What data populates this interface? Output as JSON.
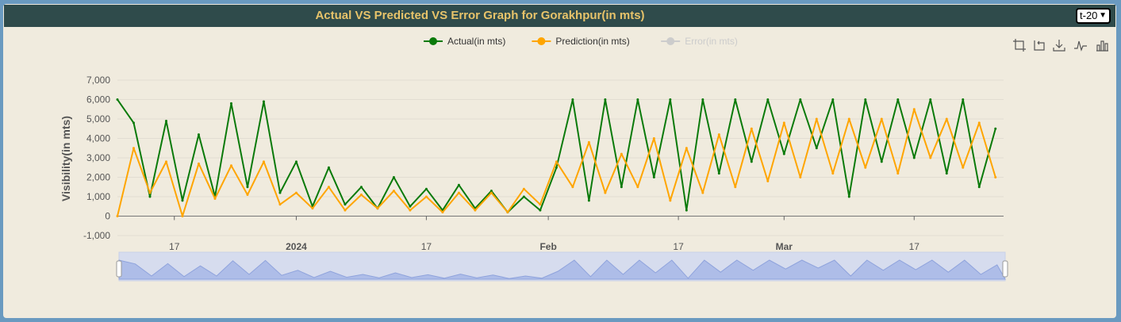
{
  "header": {
    "title": "Actual VS Predicted VS Error Graph for Gorakhpur(in mts)",
    "selected_option": "t-20"
  },
  "toolbox": {
    "icons": [
      "crop-zoom-icon",
      "undo-zoom-icon",
      "download-icon",
      "line-chart-icon",
      "bar-chart-icon"
    ]
  },
  "colors": {
    "actual": "#0a7a0a",
    "prediction": "#ffa500",
    "error": "#cccccc",
    "title": "#e7c36a",
    "titlebar": "#2f4b4b"
  },
  "chart_data": {
    "type": "line",
    "title": "Actual VS Predicted VS Error Graph for Gorakhpur(in mts)",
    "ylabel": "Visibility(in mts)",
    "xlabel": "",
    "ylim": [
      -1000,
      7000
    ],
    "yticks": [
      "7,000",
      "6,000",
      "5,000",
      "4,000",
      "3,000",
      "2,000",
      "1,000",
      "0",
      "-1,000"
    ],
    "xlim": [
      "2023-12-10",
      "2024-03-28"
    ],
    "xticks": [
      {
        "date": "2023-12-17",
        "label": "17",
        "bold": false
      },
      {
        "date": "2024-01-01",
        "label": "2024",
        "bold": true
      },
      {
        "date": "2024-01-17",
        "label": "17",
        "bold": false
      },
      {
        "date": "2024-02-01",
        "label": "Feb",
        "bold": true
      },
      {
        "date": "2024-02-17",
        "label": "17",
        "bold": false
      },
      {
        "date": "2024-03-01",
        "label": "Mar",
        "bold": true
      },
      {
        "date": "2024-03-17",
        "label": "17",
        "bold": false
      }
    ],
    "legend": {
      "position": "top-center",
      "items": [
        {
          "name": "Actual(in mts)",
          "color": "#0a7a0a",
          "active": true
        },
        {
          "name": "Prediction(in mts)",
          "color": "#ffa500",
          "active": true
        },
        {
          "name": "Error(in mts)",
          "color": "#cccccc",
          "active": false
        }
      ]
    },
    "grid": true,
    "series": [
      {
        "name": "Actual(in mts)",
        "x": [
          "2023-12-10",
          "2023-12-12",
          "2023-12-14",
          "2023-12-16",
          "2023-12-18",
          "2023-12-20",
          "2023-12-22",
          "2023-12-24",
          "2023-12-26",
          "2023-12-28",
          "2023-12-30",
          "2024-01-01",
          "2024-01-03",
          "2024-01-05",
          "2024-01-07",
          "2024-01-09",
          "2024-01-11",
          "2024-01-13",
          "2024-01-15",
          "2024-01-17",
          "2024-01-19",
          "2024-01-21",
          "2024-01-23",
          "2024-01-25",
          "2024-01-27",
          "2024-01-29",
          "2024-01-31",
          "2024-02-02",
          "2024-02-04",
          "2024-02-06",
          "2024-02-08",
          "2024-02-10",
          "2024-02-12",
          "2024-02-14",
          "2024-02-16",
          "2024-02-18",
          "2024-02-20",
          "2024-02-22",
          "2024-02-24",
          "2024-02-26",
          "2024-02-28",
          "2024-03-01",
          "2024-03-03",
          "2024-03-05",
          "2024-03-07",
          "2024-03-09",
          "2024-03-11",
          "2024-03-13",
          "2024-03-15",
          "2024-03-17",
          "2024-03-19",
          "2024-03-21",
          "2024-03-23",
          "2024-03-25",
          "2024-03-27"
        ],
        "values": [
          6000,
          4800,
          1000,
          4900,
          800,
          4200,
          1000,
          5800,
          1500,
          5900,
          1200,
          2800,
          500,
          2500,
          600,
          1500,
          400,
          2000,
          500,
          1400,
          300,
          1600,
          400,
          1300,
          200,
          1000,
          300,
          2500,
          6000,
          800,
          6000,
          1500,
          6000,
          2000,
          6000,
          300,
          6000,
          2200,
          6000,
          2800,
          6000,
          3200,
          6000,
          3500,
          6000,
          1000,
          6000,
          2800,
          6000,
          3000,
          6000,
          2200,
          6000,
          1500,
          4500
        ]
      },
      {
        "name": "Prediction(in mts)",
        "x": [
          "2023-12-10",
          "2023-12-12",
          "2023-12-14",
          "2023-12-16",
          "2023-12-18",
          "2023-12-20",
          "2023-12-22",
          "2023-12-24",
          "2023-12-26",
          "2023-12-28",
          "2023-12-30",
          "2024-01-01",
          "2024-01-03",
          "2024-01-05",
          "2024-01-07",
          "2024-01-09",
          "2024-01-11",
          "2024-01-13",
          "2024-01-15",
          "2024-01-17",
          "2024-01-19",
          "2024-01-21",
          "2024-01-23",
          "2024-01-25",
          "2024-01-27",
          "2024-01-29",
          "2024-01-31",
          "2024-02-02",
          "2024-02-04",
          "2024-02-06",
          "2024-02-08",
          "2024-02-10",
          "2024-02-12",
          "2024-02-14",
          "2024-02-16",
          "2024-02-18",
          "2024-02-20",
          "2024-02-22",
          "2024-02-24",
          "2024-02-26",
          "2024-02-28",
          "2024-03-01",
          "2024-03-03",
          "2024-03-05",
          "2024-03-07",
          "2024-03-09",
          "2024-03-11",
          "2024-03-13",
          "2024-03-15",
          "2024-03-17",
          "2024-03-19",
          "2024-03-21",
          "2024-03-23",
          "2024-03-25",
          "2024-03-27"
        ],
        "values": [
          0,
          3500,
          1200,
          2800,
          0,
          2700,
          900,
          2600,
          1100,
          2800,
          600,
          1200,
          400,
          1500,
          300,
          1100,
          400,
          1300,
          300,
          1000,
          200,
          1200,
          300,
          1200,
          200,
          1400,
          600,
          2800,
          1500,
          3800,
          1200,
          3200,
          1500,
          4000,
          800,
          3500,
          1200,
          4200,
          1500,
          4500,
          1800,
          4800,
          2000,
          5000,
          2200,
          5000,
          2500,
          5000,
          2200,
          5500,
          3000,
          5000,
          2500,
          4800,
          2000
        ]
      },
      {
        "name": "Error(in mts)",
        "x": [],
        "values": []
      }
    ]
  }
}
